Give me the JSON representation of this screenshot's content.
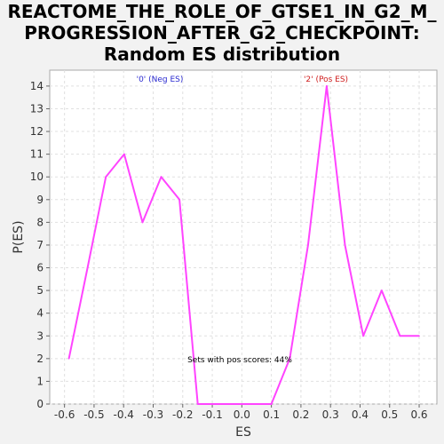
{
  "chart_data": {
    "type": "line",
    "title_lines": [
      "REACTOME_THE_ROLE_OF_GTSE1_IN_G2_M_",
      "PROGRESSION_AFTER_G2_CHECKPOINT:",
      "Random ES distribution"
    ],
    "xlabel": "ES",
    "ylabel": "P(ES)",
    "xlim": [
      -0.65,
      0.66
    ],
    "ylim": [
      0,
      14.7
    ],
    "xticks": [
      "-0.6",
      "-0.5",
      "-0.4",
      "-0.3",
      "-0.2",
      "-0.1",
      "0.0",
      "0.1",
      "0.2",
      "0.3",
      "0.4",
      "0.5",
      "0.6"
    ],
    "xtick_values": [
      -0.6,
      -0.5,
      -0.4,
      -0.3,
      -0.2,
      -0.1,
      0.0,
      0.1,
      0.2,
      0.3,
      0.4,
      0.5,
      0.6
    ],
    "yticks": [
      "0",
      "1",
      "2",
      "3",
      "4",
      "5",
      "6",
      "7",
      "8",
      "9",
      "10",
      "11",
      "12",
      "13",
      "14"
    ],
    "ytick_values": [
      0,
      1,
      2,
      3,
      4,
      5,
      6,
      7,
      8,
      9,
      10,
      11,
      12,
      13,
      14
    ],
    "grid": true,
    "line_color": "#ff44ff",
    "series": [
      {
        "x": [
          -0.585,
          -0.522,
          -0.46,
          -0.398,
          -0.336,
          -0.273,
          -0.211,
          -0.149,
          -0.087,
          -0.025,
          0.038,
          0.1,
          0.162,
          0.224,
          0.287,
          0.349,
          0.411,
          0.473,
          0.535,
          0.6
        ],
        "values": [
          2,
          6,
          10,
          11,
          8,
          10,
          9,
          0,
          0,
          0,
          0,
          0,
          2,
          7,
          14,
          7,
          3,
          5,
          3,
          3
        ]
      }
    ],
    "annotations": {
      "neg_label": "'0' (Neg ES)",
      "pos_label": "'2' (Pos ES)",
      "pos_scores": "Sets with pos scores: 44%"
    },
    "neg_color": "#2a2ad0",
    "pos_color": "#d02020"
  }
}
